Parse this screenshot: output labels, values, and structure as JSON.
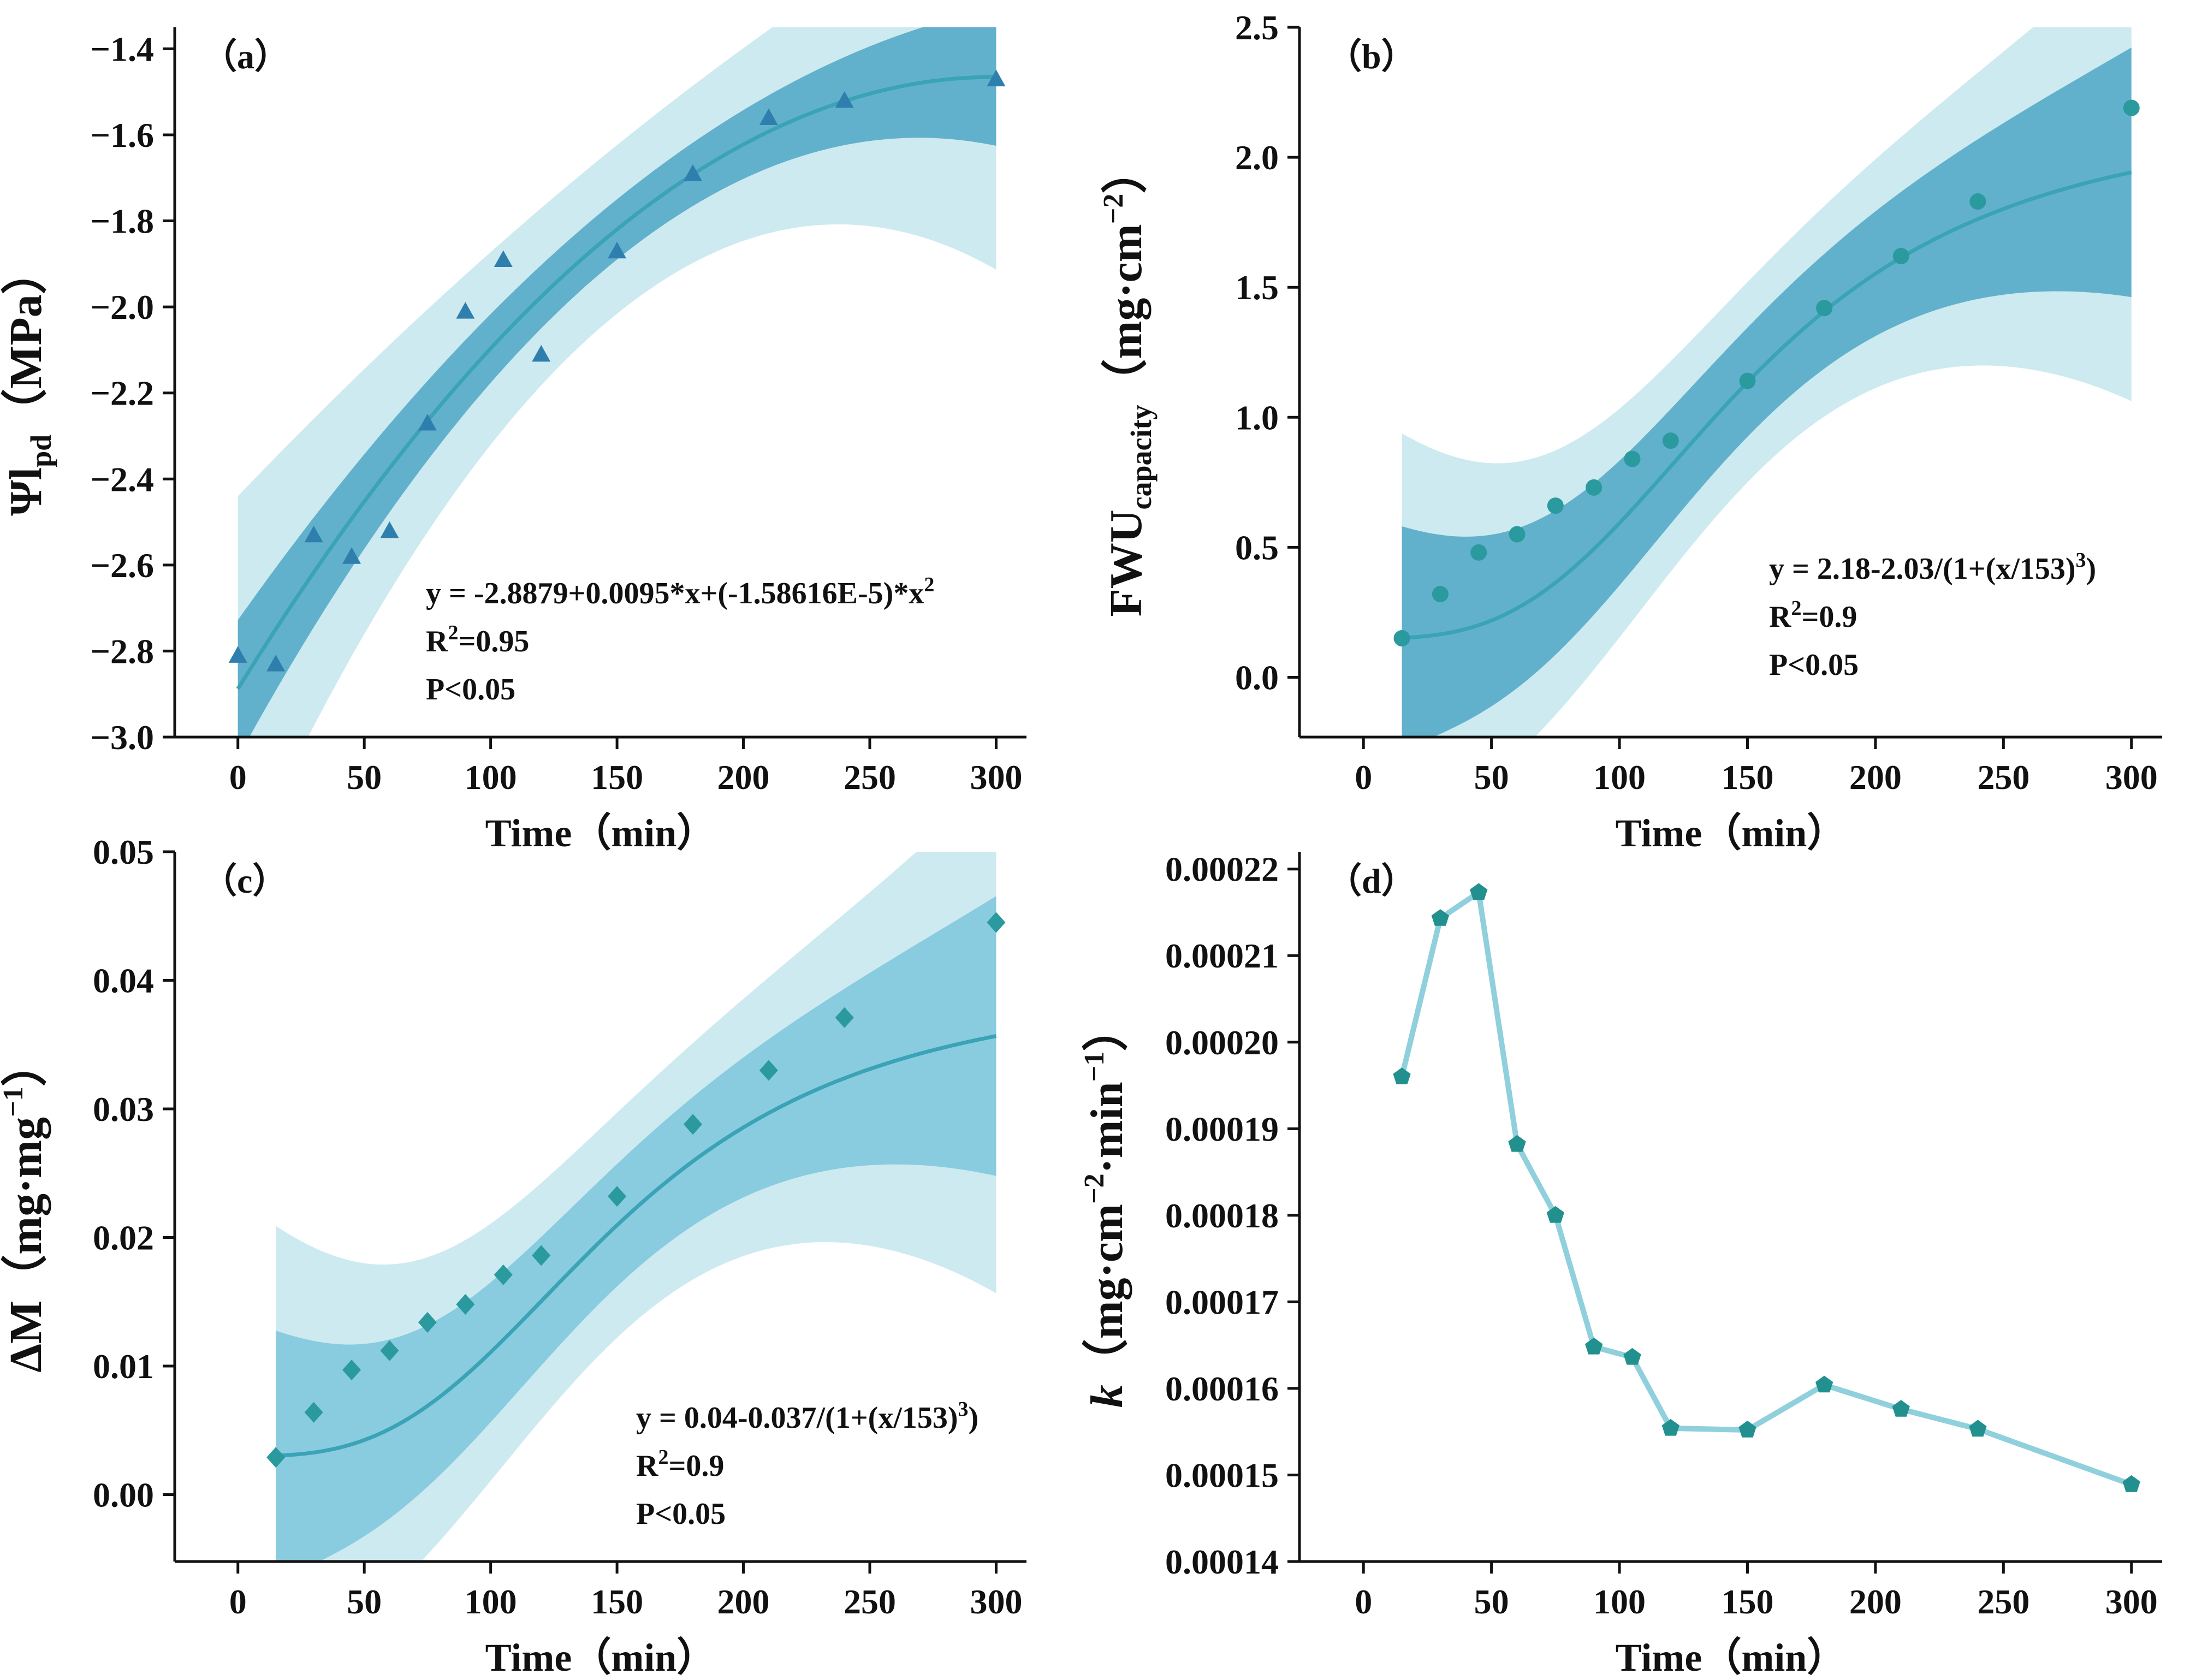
{
  "colors": {
    "band_outer": "#cdeaf0",
    "band_inner_a": "#4fa7c6",
    "band_inner_b": "#4fa7c6",
    "band_inner_c": "#7cc6dc",
    "fit_line": "#3aa3b6",
    "marker_a": "#2f7fae",
    "marker_b": "#2a9a9e",
    "marker_c": "#2a9a9e",
    "marker_d": "#22908f",
    "line_d": "#8fd0dc",
    "axis": "#111111"
  },
  "chart_data": [
    {
      "id": "a",
      "type": "scatter",
      "panel_label": "（a）",
      "marker": "triangle",
      "x": [
        0,
        15,
        30,
        45,
        60,
        75,
        90,
        105,
        120,
        150,
        180,
        210,
        240,
        300
      ],
      "y": [
        -2.81,
        -2.83,
        -2.53,
        -2.58,
        -2.52,
        -2.27,
        -2.01,
        -1.89,
        -2.11,
        -1.87,
        -1.69,
        -1.56,
        -1.52,
        -1.47
      ],
      "fit": {
        "model": "poly2",
        "a": -2.8879,
        "b": 0.0095,
        "c": -1.58616e-05,
        "x_range": [
          0,
          300
        ]
      },
      "bands": {
        "inner": 0.1,
        "outer": 0.28
      },
      "xlim": [
        -25,
        312
      ],
      "ylim": [
        -3.0,
        -1.35
      ],
      "xticks": [
        0,
        50,
        100,
        150,
        200,
        250,
        300
      ],
      "yticks": [
        -3.0,
        -2.8,
        -2.6,
        -2.4,
        -2.2,
        -2.0,
        -1.8,
        -1.6,
        -1.4
      ],
      "ytick_labels": [
        "−3.0",
        "−2.8",
        "−2.6",
        "−2.4",
        "−2.2",
        "−2.0",
        "−1.8",
        "−1.6",
        "−1.4"
      ],
      "xlabel": "Time（min）",
      "ylabel": {
        "main": "Ψl",
        "sub": "pd",
        "rest": "（MPa）"
      },
      "annotation": {
        "equation": "y = -2.8879+0.0095*x+(-1.58616E-5)*x",
        "eq_sup": "2",
        "r2_main": "R",
        "r2_sup": "2",
        "r2_rest": "=0.95",
        "p": "P<0.05"
      }
    },
    {
      "id": "b",
      "type": "scatter",
      "panel_label": "（b）",
      "marker": "circle",
      "x": [
        15,
        30,
        45,
        60,
        75,
        90,
        105,
        120,
        150,
        180,
        210,
        240,
        300
      ],
      "y": [
        0.15,
        0.32,
        0.48,
        0.55,
        0.66,
        0.73,
        0.84,
        0.91,
        1.14,
        1.42,
        1.62,
        1.83,
        2.19
      ],
      "fit": {
        "model": "logistic",
        "a": 2.18,
        "b": 2.03,
        "x0": 153,
        "p": 3,
        "x_range": [
          15,
          300
        ]
      },
      "bands": {
        "inner": 0.3,
        "outer": 0.55
      },
      "xlim": [
        -25,
        312
      ],
      "ylim": [
        -0.23,
        2.5
      ],
      "xticks": [
        0,
        50,
        100,
        150,
        200,
        250,
        300
      ],
      "yticks": [
        0.0,
        0.5,
        1.0,
        1.5,
        2.0,
        2.5
      ],
      "ytick_labels": [
        "0.0",
        "0.5",
        "1.0",
        "1.5",
        "2.0",
        "2.5"
      ],
      "xlabel": "Time（min）",
      "ylabel": {
        "main": "FWU",
        "sub": "capacity",
        "rest": "（mg·cm",
        "sup": "−2",
        "close": "）"
      },
      "annotation": {
        "equation": "y = 2.18-2.03/(1+(x/153)",
        "eq_sup": "3",
        "eq_close": ")",
        "r2_main": "R",
        "r2_sup": "2",
        "r2_rest": "=0.9",
        "p": "P<0.05"
      }
    },
    {
      "id": "c",
      "type": "scatter",
      "panel_label": "（c）",
      "marker": "diamond",
      "x": [
        15,
        30,
        45,
        60,
        75,
        90,
        105,
        120,
        150,
        180,
        210,
        240,
        300
      ],
      "y": [
        0.0029,
        0.0064,
        0.0097,
        0.0112,
        0.0134,
        0.0148,
        0.0171,
        0.0186,
        0.0232,
        0.0288,
        0.033,
        0.0371,
        0.0445
      ],
      "fit": {
        "model": "logistic",
        "a": 0.04,
        "b": 0.037,
        "x0": 153,
        "p": 3,
        "x_range": [
          15,
          300
        ]
      },
      "bands": {
        "inner": 0.0068,
        "outer": 0.0125
      },
      "xlim": [
        -25,
        312
      ],
      "ylim": [
        -0.0052,
        0.05
      ],
      "xticks": [
        0,
        50,
        100,
        150,
        200,
        250,
        300
      ],
      "yticks": [
        0.0,
        0.01,
        0.02,
        0.03,
        0.04,
        0.05
      ],
      "ytick_labels": [
        "0.00",
        "0.01",
        "0.02",
        "0.03",
        "0.04",
        "0.05"
      ],
      "xlabel": "Time（min）",
      "ylabel": {
        "main": "ΔM（mg·mg",
        "sup": "−1",
        "close": "）"
      },
      "annotation": {
        "equation": "y = 0.04-0.037/(1+(x/153)",
        "eq_sup": "3",
        "eq_close": ")",
        "r2_main": "R",
        "r2_sup": "2",
        "r2_rest": "=0.9",
        "p": "P<0.05"
      }
    },
    {
      "id": "d",
      "type": "line",
      "panel_label": "（d）",
      "marker": "pentagon",
      "x": [
        15,
        30,
        45,
        60,
        75,
        90,
        105,
        120,
        150,
        180,
        210,
        240,
        300
      ],
      "y": [
        0.000196,
        0.0002143,
        0.0002173,
        0.0001882,
        0.00018,
        0.0001648,
        0.0001636,
        0.0001554,
        0.0001552,
        0.0001604,
        0.0001576,
        0.0001553,
        0.0001489
      ],
      "xlim": [
        -25,
        312
      ],
      "ylim": [
        0.00014,
        0.000222
      ],
      "xticks": [
        0,
        50,
        100,
        150,
        200,
        250,
        300
      ],
      "yticks": [
        0.00014,
        0.00015,
        0.00016,
        0.00017,
        0.00018,
        0.00019,
        0.0002,
        0.00021,
        0.00022
      ],
      "ytick_labels": [
        "0.00014",
        "0.00015",
        "0.00016",
        "0.00017",
        "0.00018",
        "0.00019",
        "0.00020",
        "0.00021",
        "0.00022"
      ],
      "xlabel": "Time（min）",
      "ylabel": {
        "main": "k",
        "rest": "（mg·cm",
        "sup": "−2",
        "mid": "·min",
        "sup2": "−1",
        "close": "）"
      }
    }
  ]
}
